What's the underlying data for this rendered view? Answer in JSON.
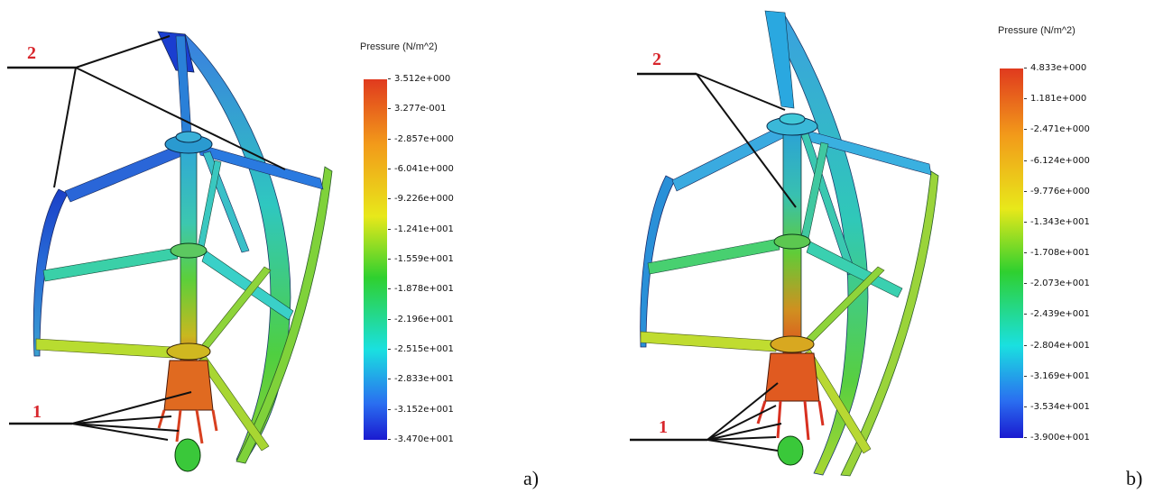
{
  "panels": [
    {
      "label": "a)",
      "legend_title": "Pressure (N/m^2)",
      "ticks": [
        "3.512e+000",
        "3.277e-001",
        "-2.857e+000",
        "-6.041e+000",
        "-9.226e+000",
        "-1.241e+001",
        "-1.559e+001",
        "-1.878e+001",
        "-2.196e+001",
        "-2.515e+001",
        "-2.833e+001",
        "-3.152e+001",
        "-3.470e+001"
      ],
      "marker_top": "2",
      "marker_bottom": "1"
    },
    {
      "label": "b)",
      "legend_title": "Pressure (N/m^2)",
      "ticks": [
        "4.833e+000",
        "1.181e+000",
        "-2.471e+000",
        "-6.124e+000",
        "-9.776e+000",
        "-1.343e+001",
        "-1.708e+001",
        "-2.073e+001",
        "-2.439e+001",
        "-2.804e+001",
        "-3.169e+001",
        "-3.534e+001",
        "-3.900e+001"
      ],
      "marker_top": "2",
      "marker_bottom": "1"
    }
  ],
  "colors": {
    "scale_max": "#e03a1e",
    "scale_high": "#f29a1a",
    "scale_mid_high": "#e8e81a",
    "scale_mid": "#2fd02f",
    "scale_mid_low": "#1ae0e0",
    "scale_low": "#2a6ef0",
    "scale_min": "#1a1ad0",
    "marker": "#d8262c"
  }
}
